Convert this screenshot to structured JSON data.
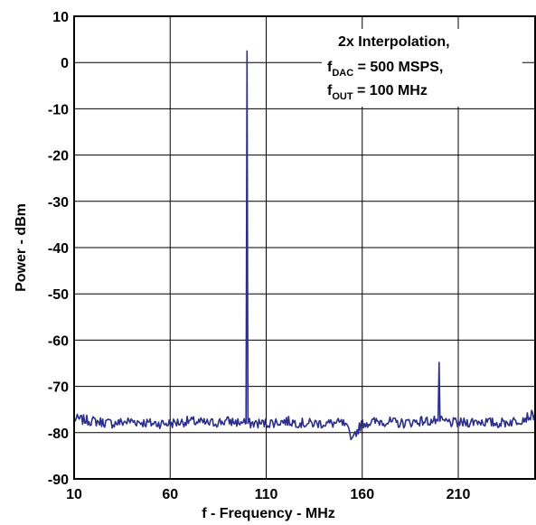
{
  "chart_data": {
    "type": "line",
    "xlabel": "f - Frequency - MHz",
    "ylabel": "Power - dBm",
    "xlim": [
      10,
      250
    ],
    "ylim": [
      -90,
      10
    ],
    "x_ticks": [
      10,
      60,
      110,
      160,
      210
    ],
    "y_ticks": [
      10,
      0,
      -10,
      -20,
      -30,
      -40,
      -50,
      -60,
      -70,
      -80,
      -90
    ],
    "grid": true,
    "noise_floor_dbm": -78,
    "series": [
      {
        "color": "#2b2f8a",
        "x": [
          10,
          20,
          30,
          40,
          50,
          60,
          70,
          80,
          90,
          99.5,
          100,
          100.5,
          110,
          120,
          130,
          140,
          150,
          155,
          160,
          170,
          180,
          190,
          199.5,
          200,
          200.5,
          210,
          220,
          230,
          240,
          250
        ],
        "y": [
          -77,
          -77.5,
          -78,
          -77.5,
          -78,
          -78,
          -77.5,
          -78,
          -77.5,
          -78,
          2.5,
          -78,
          -78,
          -77.5,
          -78,
          -78,
          -78,
          -81,
          -78,
          -77.5,
          -78,
          -77.5,
          -77.5,
          -64.8,
          -77.5,
          -78,
          -77.5,
          -78,
          -77.5,
          -76
        ]
      }
    ],
    "annotations": [
      {
        "main": "2x Interpolation,"
      },
      {
        "main": "f",
        "sub": "DAC",
        "rest": " = 500 MSPS,"
      },
      {
        "main": "f",
        "sub": "OUT",
        "rest": " = 100 MHz"
      }
    ]
  }
}
